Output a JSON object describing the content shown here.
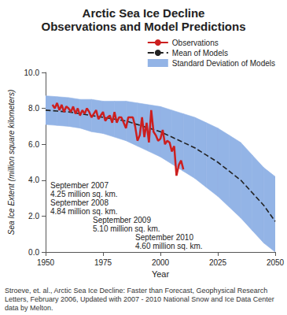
{
  "chart_data": {
    "type": "line",
    "title": "Arctic Sea Ice Decline",
    "subtitle": "Observations and Model Predictions",
    "x_label": "Year",
    "y_label": "Sea Ice Extent (million square kilometers)",
    "xlim": [
      1950,
      2050
    ],
    "xticks": [
      1950,
      1975,
      2000,
      2025,
      2050
    ],
    "ylim": [
      0,
      10
    ],
    "yticks": [
      {
        "value": 0,
        "label": "0.0"
      },
      {
        "value": 2,
        "label": "2.0"
      },
      {
        "value": 4,
        "label": "4.0"
      },
      {
        "value": 6,
        "label": "6.0"
      },
      {
        "value": 8,
        "label": "8.0"
      },
      {
        "value": 10,
        "label": "10.0"
      }
    ],
    "grid": false,
    "legend": "top-right",
    "series": [
      {
        "name": "Observations",
        "type": "line",
        "color": "#cc1f1f",
        "line_style": "solid",
        "marker": "none",
        "x": [
          1953,
          1954,
          1955,
          1956,
          1957,
          1958,
          1959,
          1960,
          1961,
          1962,
          1963,
          1964,
          1965,
          1966,
          1967,
          1968,
          1969,
          1970,
          1971,
          1972,
          1973,
          1974,
          1975,
          1976,
          1977,
          1978,
          1979,
          1980,
          1981,
          1982,
          1983,
          1984,
          1985,
          1986,
          1987,
          1988,
          1989,
          1990,
          1991,
          1992,
          1993,
          1994,
          1995,
          1996,
          1997,
          1998,
          1999,
          2000,
          2001,
          2002,
          2003,
          2004,
          2005,
          2006,
          2007,
          2008,
          2009,
          2010
        ],
        "values": [
          8.2,
          8.0,
          8.3,
          7.9,
          8.2,
          7.8,
          8.1,
          8.0,
          7.8,
          8.1,
          7.7,
          8.0,
          7.6,
          7.9,
          7.7,
          8.0,
          7.8,
          7.5,
          7.7,
          7.9,
          7.4,
          7.6,
          7.8,
          7.3,
          7.5,
          7.6,
          7.2,
          7.8,
          7.2,
          7.5,
          7.5,
          7.2,
          6.9,
          7.5,
          7.5,
          7.5,
          7.0,
          6.2,
          6.5,
          7.5,
          6.4,
          7.2,
          6.1,
          7.9,
          6.7,
          6.5,
          6.2,
          6.3,
          6.8,
          6.0,
          6.2,
          6.1,
          5.6,
          5.9,
          4.25,
          4.84,
          5.1,
          4.6
        ]
      },
      {
        "name": "Mean of Models",
        "type": "line",
        "color": "#222222",
        "line_style": "dashed",
        "marker": "none",
        "x": [
          1950,
          1955,
          1960,
          1965,
          1970,
          1975,
          1980,
          1985,
          1990,
          1995,
          2000,
          2005,
          2010,
          2015,
          2020,
          2025,
          2030,
          2035,
          2040,
          2045,
          2050
        ],
        "values": [
          7.9,
          7.85,
          7.8,
          7.7,
          7.6,
          7.5,
          7.4,
          7.3,
          7.1,
          6.9,
          6.7,
          6.4,
          6.1,
          5.8,
          5.4,
          5.0,
          4.5,
          4.0,
          3.3,
          2.6,
          1.7
        ]
      },
      {
        "name": "Standard Deviation of Models",
        "type": "band",
        "color": "#93b4e6",
        "x": [
          1950,
          1955,
          1960,
          1965,
          1970,
          1975,
          1980,
          1985,
          1990,
          1995,
          2000,
          2005,
          2010,
          2015,
          2020,
          2025,
          2030,
          2035,
          2040,
          2045,
          2050
        ],
        "lower": [
          7.1,
          7.05,
          7.0,
          6.9,
          6.7,
          6.6,
          6.4,
          6.2,
          5.9,
          5.6,
          5.3,
          4.9,
          4.5,
          4.1,
          3.6,
          3.1,
          2.5,
          1.9,
          1.2,
          0.5,
          0.0
        ],
        "upper": [
          8.7,
          8.65,
          8.6,
          8.5,
          8.5,
          8.4,
          8.4,
          8.4,
          8.3,
          8.2,
          8.1,
          7.9,
          7.7,
          7.5,
          7.2,
          6.9,
          6.5,
          6.1,
          5.4,
          4.7,
          4.2
        ]
      }
    ],
    "annotations": [
      [
        "September 2007",
        "4.25 million sq. km."
      ],
      [
        "September 2008",
        "4.84 million sq. km."
      ],
      [
        "September 2009",
        "5.10 million sq. km."
      ],
      [
        "September 2010",
        "4.60 million sq. km."
      ]
    ],
    "source": "Stroeve, et. al., Arctic Sea Ice Decline: Faster than Forecast, Geophysical Research Letters, February 2006, Updated with 2007 - 2010 National Snow and Ice Data Center data by Melton."
  }
}
